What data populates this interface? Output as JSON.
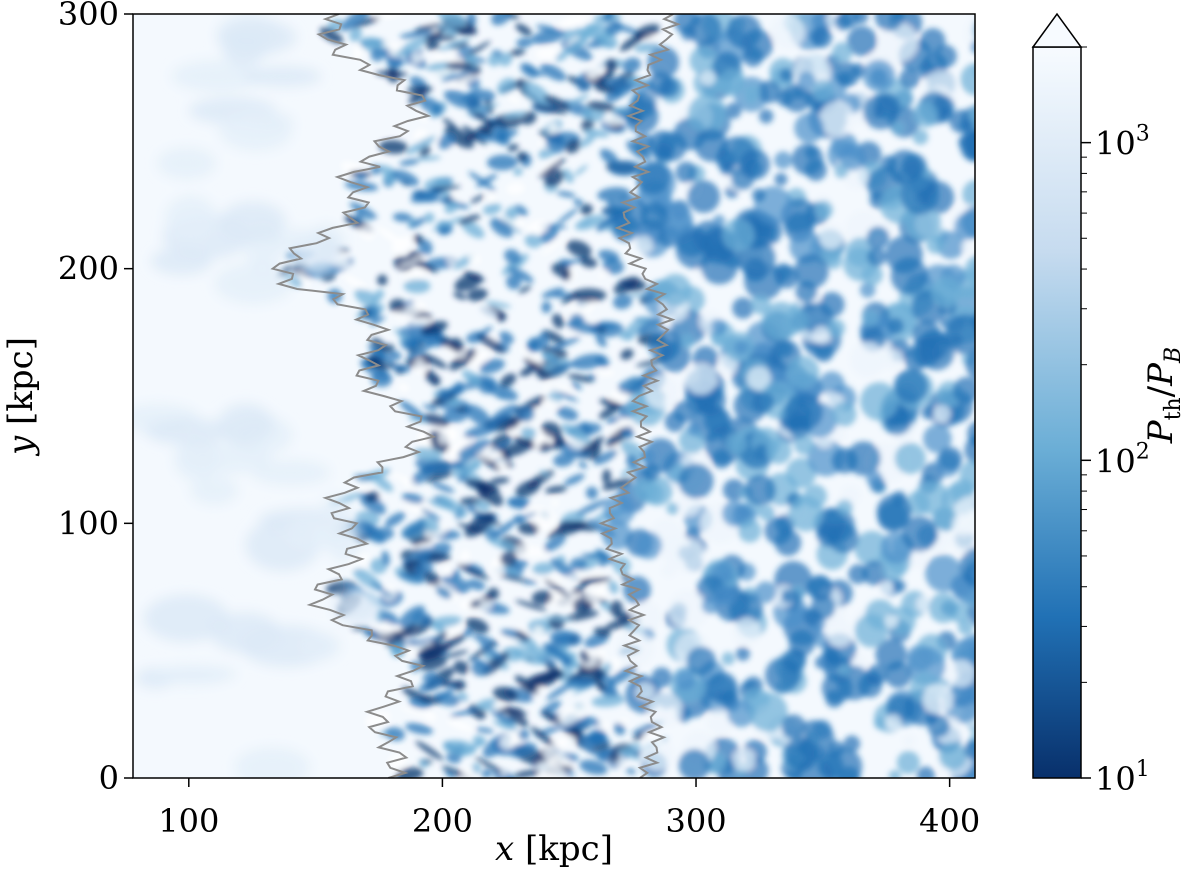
{
  "chart_data": {
    "type": "heatmap",
    "title": "",
    "xlabel": "x [kpc]",
    "ylabel": "y [kpc]",
    "xlim": [
      78,
      410
    ],
    "ylim": [
      0,
      300
    ],
    "xticks": [
      100,
      200,
      300,
      400
    ],
    "yticks": [
      0,
      100,
      200,
      300
    ],
    "xtick_labels": [
      "100",
      "200",
      "300",
      "400"
    ],
    "ytick_labels": [
      "0",
      "100",
      "200",
      "300"
    ],
    "grid": false,
    "colormap": "Blues_r",
    "colormap_stops": [
      "#08306b",
      "#2171b5",
      "#6baed6",
      "#c6dbef",
      "#f7fbff"
    ],
    "colorbar": {
      "label": "P_th / P_B",
      "scale": "log",
      "range": [
        10,
        2000
      ],
      "extend": "max",
      "ticks": [
        10,
        100,
        1000
      ],
      "tick_labels": [
        "10^1",
        "10^2",
        "10^3"
      ]
    },
    "contour_color": "#8c8c8c",
    "regions": [
      {
        "x_range": [
          78,
          170
        ],
        "level": 2000
      },
      {
        "x_range": [
          170,
          275
        ],
        "level": 120
      },
      {
        "x_range": [
          275,
          410
        ],
        "level": 160
      }
    ]
  }
}
